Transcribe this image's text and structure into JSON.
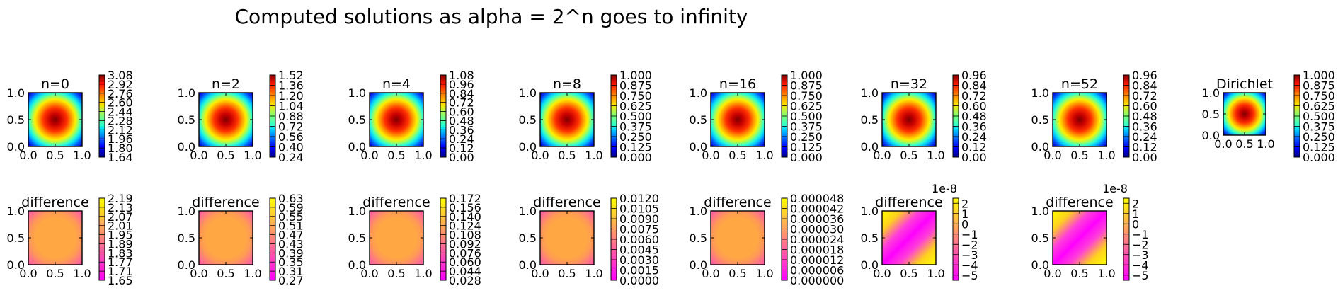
{
  "figure_title": "Computed solutions as alpha = 2^n goes to infinity",
  "colors": {
    "solution_colormap": "jet",
    "difference_colormap": "spring",
    "axes_frame": "#000000",
    "background": "#ffffff"
  },
  "chart_data": [
    {
      "type": "heatmap",
      "title": "n=0",
      "field": "solution",
      "colormap": "jet",
      "xlim": [
        0,
        1
      ],
      "ylim": [
        0,
        1
      ],
      "xticks": [
        "0.0",
        "0.5",
        "1.0"
      ],
      "yticks": [
        "0.0",
        "0.5",
        "1.0"
      ],
      "value_range": [
        1.64,
        3.08
      ],
      "colorbar_ticks": [
        "1.64",
        "1.80",
        "1.96",
        "2.12",
        "2.28",
        "2.44",
        "2.60",
        "2.76",
        "2.92",
        "3.08"
      ]
    },
    {
      "type": "heatmap",
      "title": "n=2",
      "field": "solution",
      "colormap": "jet",
      "xlim": [
        0,
        1
      ],
      "ylim": [
        0,
        1
      ],
      "xticks": [
        "0.0",
        "0.5",
        "1.0"
      ],
      "yticks": [
        "0.0",
        "0.5",
        "1.0"
      ],
      "value_range": [
        0.24,
        1.52
      ],
      "colorbar_ticks": [
        "0.24",
        "0.40",
        "0.56",
        "0.72",
        "0.88",
        "1.04",
        "1.20",
        "1.36",
        "1.52"
      ]
    },
    {
      "type": "heatmap",
      "title": "n=4",
      "field": "solution",
      "colormap": "jet",
      "xlim": [
        0,
        1
      ],
      "ylim": [
        0,
        1
      ],
      "xticks": [
        "0.0",
        "0.5",
        "1.0"
      ],
      "yticks": [
        "0.0",
        "0.5",
        "1.0"
      ],
      "value_range": [
        0.0,
        1.08
      ],
      "colorbar_ticks": [
        "0.00",
        "0.12",
        "0.24",
        "0.36",
        "0.48",
        "0.60",
        "0.72",
        "0.84",
        "0.96",
        "1.08"
      ]
    },
    {
      "type": "heatmap",
      "title": "n=8",
      "field": "solution",
      "colormap": "jet",
      "xlim": [
        0,
        1
      ],
      "ylim": [
        0,
        1
      ],
      "xticks": [
        "0.0",
        "0.5",
        "1.0"
      ],
      "yticks": [
        "0.0",
        "0.5",
        "1.0"
      ],
      "value_range": [
        0.0,
        1.0
      ],
      "colorbar_ticks": [
        "0.000",
        "0.125",
        "0.250",
        "0.375",
        "0.500",
        "0.625",
        "0.750",
        "0.875",
        "1.000"
      ]
    },
    {
      "type": "heatmap",
      "title": "n=16",
      "field": "solution",
      "colormap": "jet",
      "xlim": [
        0,
        1
      ],
      "ylim": [
        0,
        1
      ],
      "xticks": [
        "0.0",
        "0.5",
        "1.0"
      ],
      "yticks": [
        "0.0",
        "0.5",
        "1.0"
      ],
      "value_range": [
        0.0,
        1.0
      ],
      "colorbar_ticks": [
        "0.000",
        "0.125",
        "0.250",
        "0.375",
        "0.500",
        "0.625",
        "0.750",
        "0.875",
        "1.000"
      ]
    },
    {
      "type": "heatmap",
      "title": "n=32",
      "field": "solution",
      "colormap": "jet",
      "xlim": [
        0,
        1
      ],
      "ylim": [
        0,
        1
      ],
      "xticks": [
        "0.0",
        "0.5",
        "1.0"
      ],
      "yticks": [
        "0.0",
        "0.5",
        "1.0"
      ],
      "value_range": [
        0.0,
        0.96
      ],
      "colorbar_ticks": [
        "0.00",
        "0.12",
        "0.24",
        "0.36",
        "0.48",
        "0.60",
        "0.72",
        "0.84",
        "0.96"
      ]
    },
    {
      "type": "heatmap",
      "title": "n=52",
      "field": "solution",
      "colormap": "jet",
      "xlim": [
        0,
        1
      ],
      "ylim": [
        0,
        1
      ],
      "xticks": [
        "0.0",
        "0.5",
        "1.0"
      ],
      "yticks": [
        "0.0",
        "0.5",
        "1.0"
      ],
      "value_range": [
        0.0,
        0.96
      ],
      "colorbar_ticks": [
        "0.00",
        "0.12",
        "0.24",
        "0.36",
        "0.48",
        "0.60",
        "0.72",
        "0.84",
        "0.96"
      ]
    },
    {
      "type": "heatmap",
      "title": "Dirichlet",
      "field": "solution",
      "colormap": "jet",
      "xlim": [
        0,
        1
      ],
      "ylim": [
        0,
        1
      ],
      "xticks": [
        "0.0",
        "0.5",
        "1.0"
      ],
      "yticks": [
        "0.0",
        "0.5",
        "1.0"
      ],
      "value_range": [
        0.0,
        1.0
      ],
      "colorbar_ticks": [
        "0.000",
        "0.125",
        "0.250",
        "0.375",
        "0.500",
        "0.625",
        "0.750",
        "0.875",
        "1.000"
      ]
    },
    {
      "type": "heatmap",
      "title": "difference",
      "field": "difference",
      "colormap": "spring",
      "xlim": [
        0,
        1
      ],
      "ylim": [
        0,
        1
      ],
      "xticks": [
        "0.0",
        "0.5",
        "1.0"
      ],
      "yticks": [
        "0.0",
        "0.5",
        "1.0"
      ],
      "value_range": [
        1.65,
        2.19
      ],
      "colorbar_ticks": [
        "1.65",
        "1.71",
        "1.77",
        "1.83",
        "1.89",
        "1.95",
        "2.01",
        "2.07",
        "2.13",
        "2.19"
      ]
    },
    {
      "type": "heatmap",
      "title": "difference",
      "field": "difference",
      "colormap": "spring",
      "xlim": [
        0,
        1
      ],
      "ylim": [
        0,
        1
      ],
      "xticks": [
        "0.0",
        "0.5",
        "1.0"
      ],
      "yticks": [
        "0.0",
        "0.5",
        "1.0"
      ],
      "value_range": [
        0.27,
        0.63
      ],
      "colorbar_ticks": [
        "0.27",
        "0.31",
        "0.35",
        "0.39",
        "0.43",
        "0.47",
        "0.51",
        "0.55",
        "0.59",
        "0.63"
      ]
    },
    {
      "type": "heatmap",
      "title": "difference",
      "field": "difference",
      "colormap": "spring",
      "xlim": [
        0,
        1
      ],
      "ylim": [
        0,
        1
      ],
      "xticks": [
        "0.0",
        "0.5",
        "1.0"
      ],
      "yticks": [
        "0.0",
        "0.5",
        "1.0"
      ],
      "value_range": [
        0.028,
        0.172
      ],
      "colorbar_ticks": [
        "0.028",
        "0.044",
        "0.060",
        "0.076",
        "0.092",
        "0.108",
        "0.124",
        "0.140",
        "0.156",
        "0.172"
      ]
    },
    {
      "type": "heatmap",
      "title": "difference",
      "field": "difference",
      "colormap": "spring",
      "xlim": [
        0,
        1
      ],
      "ylim": [
        0,
        1
      ],
      "xticks": [
        "0.0",
        "0.5",
        "1.0"
      ],
      "yticks": [
        "0.0",
        "0.5",
        "1.0"
      ],
      "value_range": [
        0.0,
        0.012
      ],
      "colorbar_ticks": [
        "0.0000",
        "0.0015",
        "0.0030",
        "0.0045",
        "0.0060",
        "0.0075",
        "0.0090",
        "0.0105",
        "0.0120"
      ]
    },
    {
      "type": "heatmap",
      "title": "difference",
      "field": "difference",
      "colormap": "spring",
      "xlim": [
        0,
        1
      ],
      "ylim": [
        0,
        1
      ],
      "xticks": [
        "0.0",
        "0.5",
        "1.0"
      ],
      "yticks": [
        "0.0",
        "0.5",
        "1.0"
      ],
      "value_range": [
        0.0,
        4.8e-05
      ],
      "colorbar_ticks": [
        "0.000000",
        "0.000006",
        "0.000012",
        "0.000018",
        "0.000024",
        "0.000030",
        "0.000036",
        "0.000042",
        "0.000048"
      ]
    },
    {
      "type": "heatmap",
      "title": "difference",
      "field": "difference",
      "colormap": "spring",
      "xlim": [
        0,
        1
      ],
      "ylim": [
        0,
        1
      ],
      "xticks": [
        "0.0",
        "0.5",
        "1.0"
      ],
      "yticks": [
        "0.0",
        "0.5",
        "1.0"
      ],
      "value_range": [
        -5.5,
        2.5
      ],
      "value_scale": "1e-8",
      "colorbar_ticks": [
        "−5",
        "−4",
        "−3",
        "−2",
        "−1",
        "0",
        "1",
        "2"
      ]
    },
    {
      "type": "heatmap",
      "title": "difference",
      "field": "difference",
      "colormap": "spring",
      "xlim": [
        0,
        1
      ],
      "ylim": [
        0,
        1
      ],
      "xticks": [
        "0.0",
        "0.5",
        "1.0"
      ],
      "yticks": [
        "0.0",
        "0.5",
        "1.0"
      ],
      "value_range": [
        -5.5,
        2.5
      ],
      "value_scale": "1e-8",
      "colorbar_ticks": [
        "−5",
        "−4",
        "−3",
        "−2",
        "−1",
        "0",
        "1",
        "2"
      ]
    }
  ]
}
